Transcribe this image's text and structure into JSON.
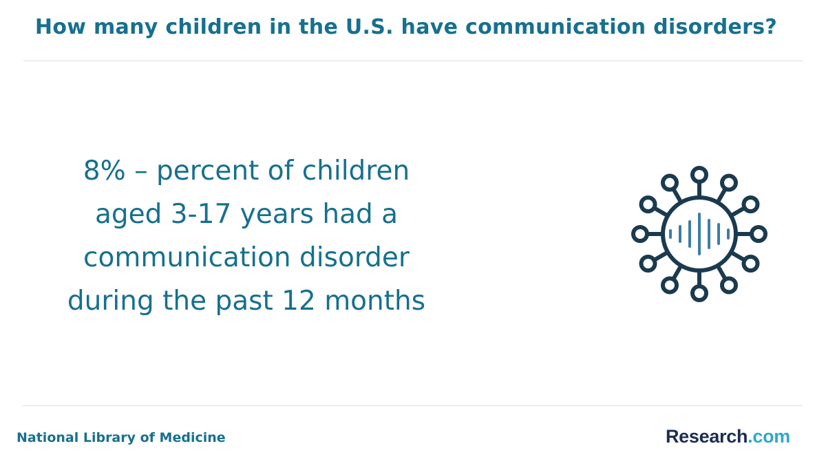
{
  "header": {
    "title": "How many children in the U.S. have communication disorders?"
  },
  "statement": {
    "lines": [
      "8% – percent of children",
      "aged 3-17 years had a",
      "communication disorder",
      "during the past 12 months"
    ]
  },
  "icon": {
    "name": "sound-wave-network-icon",
    "stroke_color": "#1a3a4f",
    "wave_color": "#3b7ea6"
  },
  "footer": {
    "source": "National Library of Medicine",
    "brand_main": "Research",
    "brand_suffix": ".com"
  }
}
